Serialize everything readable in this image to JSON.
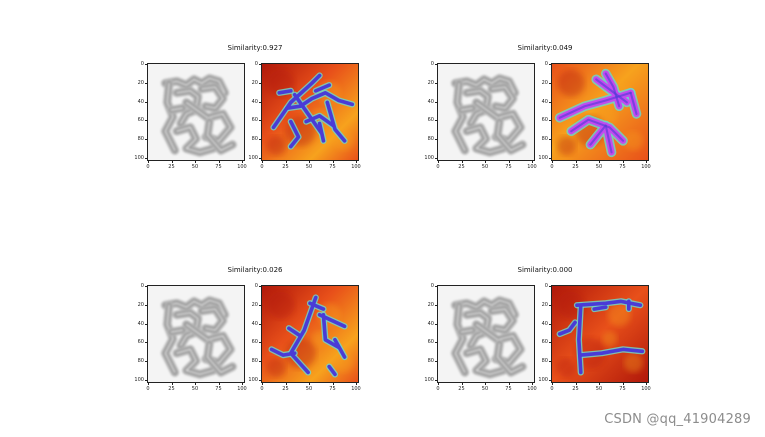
{
  "panels": [
    {
      "title": "Similarity:0.927",
      "variant": "a"
    },
    {
      "title": "Similarity:0.049",
      "variant": "b"
    },
    {
      "title": "Similarity:0.026",
      "variant": "c"
    },
    {
      "title": "Similarity:0.000",
      "variant": "d"
    }
  ],
  "axis": {
    "y_ticks": [
      "0",
      "20",
      "40",
      "60",
      "80",
      "100"
    ],
    "x_ticks": [
      "0",
      "25",
      "50",
      "75",
      "100"
    ]
  },
  "watermark": "CSDN @qq_41904289",
  "colors": {
    "heat_dark": "#b0180a",
    "heat_mid": "#e8501a",
    "heat_light": "#f7a21d",
    "stroke_blue": "#4a3bd6",
    "stroke_magenta": "#c24bf0",
    "glow_cyan": "#6fd3c9",
    "glyph_gray": "#8a8a8a"
  }
}
